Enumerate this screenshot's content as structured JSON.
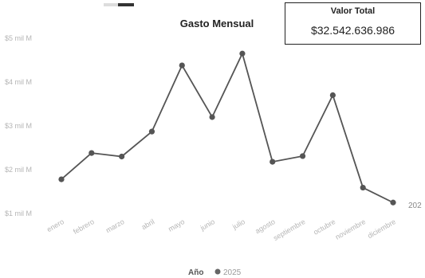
{
  "card": {
    "label": "Valor Total",
    "value": "$32.542.636.986"
  },
  "chart_data": {
    "type": "line",
    "title": "Gasto Mensual",
    "xlabel": "",
    "ylabel": "",
    "categories": [
      "enero",
      "febrero",
      "marzo",
      "abril",
      "mayo",
      "junio",
      "julio",
      "agosto",
      "septiembre",
      "octubre",
      "noviembre",
      "diciembre"
    ],
    "series": [
      {
        "name": "2025",
        "values": [
          1.78,
          2.38,
          2.3,
          2.87,
          4.38,
          3.2,
          4.65,
          2.18,
          2.31,
          3.7,
          1.59,
          1.25
        ]
      }
    ],
    "yticks": [
      {
        "value": 1,
        "label": "$1 mil M"
      },
      {
        "value": 2,
        "label": "$2 mil M"
      },
      {
        "value": 3,
        "label": "$3 mil M"
      },
      {
        "value": 4,
        "label": "$4 mil M"
      },
      {
        "value": 5,
        "label": "$5 mil M"
      }
    ],
    "ylim": [
      1,
      5
    ],
    "end_label": "202",
    "grid": false,
    "legend": {
      "title": "Año",
      "items": [
        "2025"
      ],
      "position": "bottom"
    },
    "line_color": "#555555"
  }
}
